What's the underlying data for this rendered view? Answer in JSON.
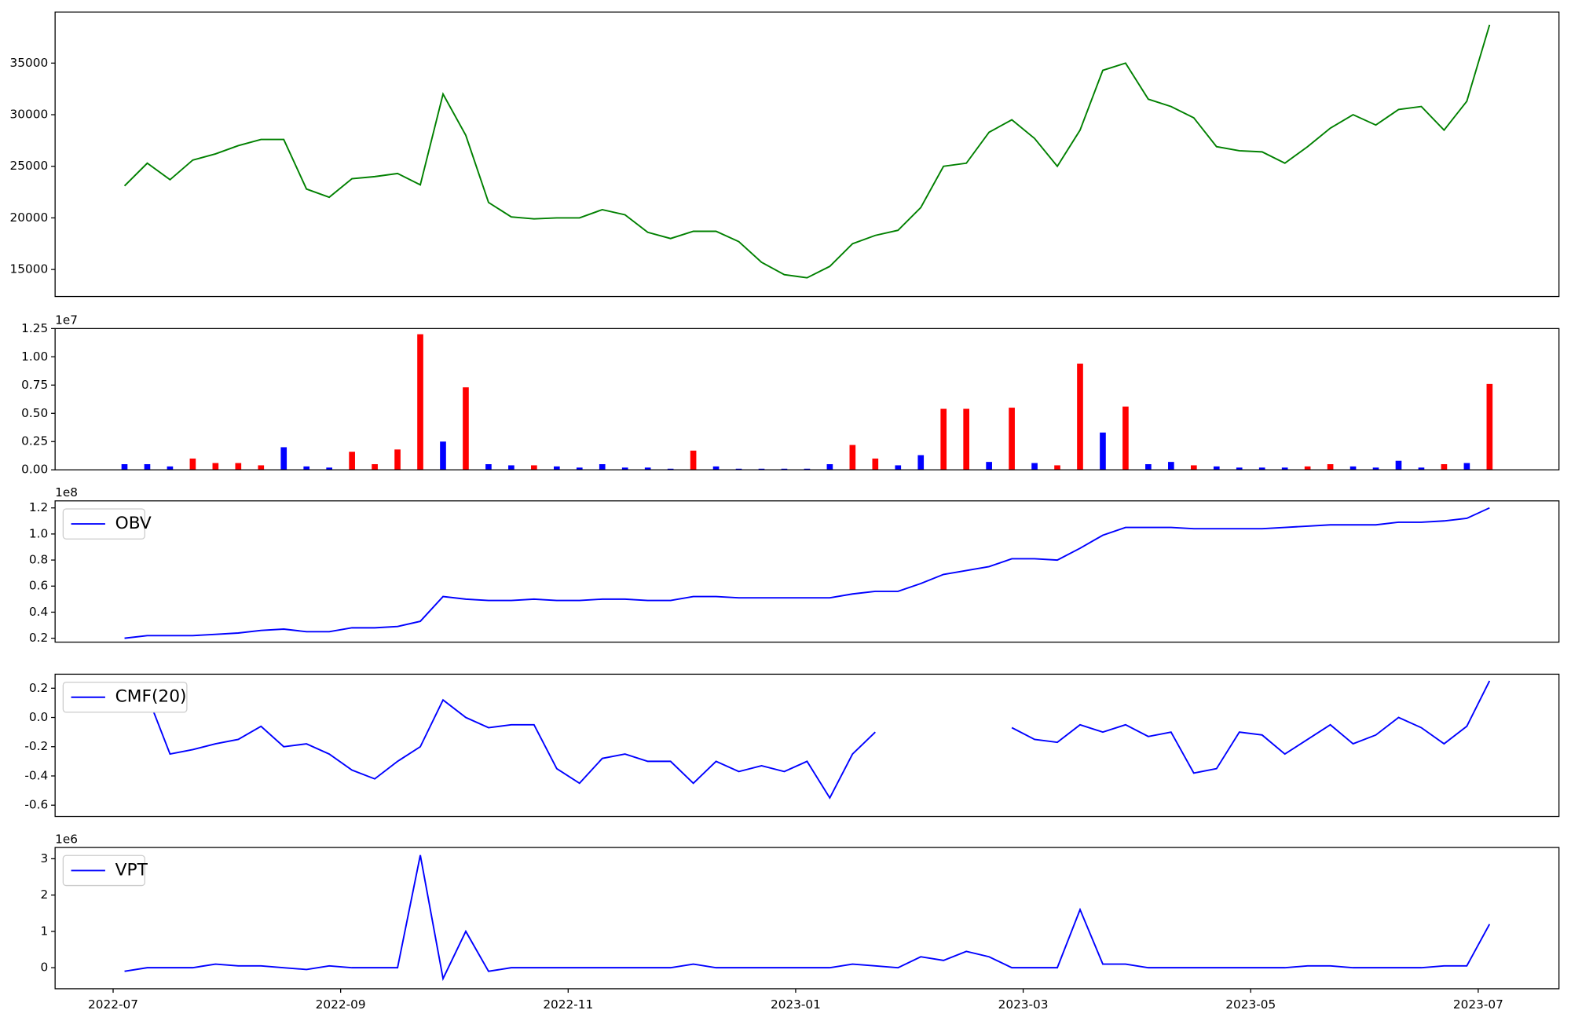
{
  "chart_data": [
    {
      "type": "line",
      "color": "green",
      "xlim": [
        -0.51,
        12.71
      ],
      "ylim": [
        12380,
        39950
      ],
      "yticks": [
        15000,
        20000,
        25000,
        30000,
        35000
      ],
      "x": [
        0.1,
        0.3,
        0.5,
        0.7,
        0.9,
        1.1,
        1.3,
        1.5,
        1.7,
        1.9,
        2.1,
        2.3,
        2.5,
        2.7,
        2.9,
        3.1,
        3.3,
        3.5,
        3.7,
        3.9,
        4.1,
        4.3,
        4.5,
        4.7,
        4.9,
        5.1,
        5.3,
        5.5,
        5.7,
        5.9,
        6.1,
        6.3,
        6.5,
        6.7,
        6.9,
        7.1,
        7.3,
        7.5,
        7.7,
        7.9,
        8.1,
        8.3,
        8.5,
        8.7,
        8.9,
        9.1,
        9.3,
        9.5,
        9.7,
        9.9,
        10.1,
        10.3,
        10.5,
        10.7,
        10.9,
        11.1,
        11.3,
        11.5,
        11.7,
        11.9,
        12.1
      ],
      "values": [
        23100,
        25300,
        23700,
        25600,
        26200,
        27000,
        27600,
        27600,
        22800,
        22000,
        23800,
        24000,
        24300,
        23200,
        32000,
        28000,
        21500,
        20100,
        19900,
        20000,
        20000,
        20800,
        20300,
        18600,
        18000,
        18700,
        18700,
        17700,
        15700,
        14500,
        14200,
        15300,
        17500,
        18300,
        18800,
        21000,
        25000,
        25300,
        28300,
        29500,
        27700,
        25000,
        28500,
        34300,
        35000,
        31500,
        30800,
        29700,
        26900,
        26500,
        26400,
        25300,
        26900,
        28700,
        30000,
        29000,
        30500,
        30800,
        28500,
        31300,
        38700
      ]
    },
    {
      "type": "bar",
      "offset_label": "1e7",
      "xlim": [
        -0.51,
        12.71
      ],
      "ylim": [
        0,
        1.25
      ],
      "yticks": [
        {
          "value": 0,
          "label": "0.00"
        },
        0.25,
        {
          "value": 0.5,
          "label": "0.50"
        },
        0.75,
        {
          "value": 1,
          "label": "1.00"
        },
        1.25
      ],
      "x": [
        0.1,
        0.3,
        0.5,
        0.7,
        0.9,
        1.1,
        1.3,
        1.5,
        1.7,
        1.9,
        2.1,
        2.3,
        2.5,
        2.7,
        2.9,
        3.1,
        3.3,
        3.5,
        3.7,
        3.9,
        4.1,
        4.3,
        4.5,
        4.7,
        4.9,
        5.1,
        5.3,
        5.5,
        5.7,
        5.9,
        6.1,
        6.3,
        6.5,
        6.7,
        6.9,
        7.1,
        7.3,
        7.5,
        7.7,
        7.9,
        8.1,
        8.3,
        8.5,
        8.7,
        8.9,
        9.1,
        9.3,
        9.5,
        9.7,
        9.9,
        10.1,
        10.3,
        10.5,
        10.7,
        10.9,
        11.1,
        11.3,
        11.5,
        11.7,
        11.9,
        12.1
      ],
      "values": [
        0.05,
        0.05,
        0.03,
        0.1,
        0.06,
        0.06,
        0.04,
        0.2,
        0.03,
        0.02,
        0.16,
        0.05,
        0.18,
        1.2,
        0.25,
        0.73,
        0.05,
        0.04,
        0.04,
        0.03,
        0.02,
        0.05,
        0.02,
        0.02,
        0.01,
        0.17,
        0.03,
        0.01,
        0.01,
        0.01,
        0.01,
        0.05,
        0.22,
        0.1,
        0.04,
        0.13,
        0.54,
        0.54,
        0.07,
        0.55,
        0.06,
        0.04,
        0.94,
        0.33,
        0.56,
        0.05,
        0.07,
        0.04,
        0.03,
        0.02,
        0.02,
        0.02,
        0.03,
        0.05,
        0.03,
        0.02,
        0.08,
        0.02,
        0.05,
        0.06,
        0.76
      ],
      "colors": [
        "blue",
        "blue",
        "blue",
        "red",
        "red",
        "red",
        "red",
        "blue",
        "blue",
        "blue",
        "red",
        "red",
        "red",
        "red",
        "blue",
        "red",
        "blue",
        "blue",
        "red",
        "blue",
        "blue",
        "blue",
        "blue",
        "blue",
        "blue",
        "red",
        "blue",
        "blue",
        "blue",
        "blue",
        "blue",
        "blue",
        "red",
        "red",
        "blue",
        "blue",
        "red",
        "red",
        "blue",
        "red",
        "blue",
        "red",
        "red",
        "blue",
        "red",
        "blue",
        "blue",
        "red",
        "blue",
        "blue",
        "blue",
        "blue",
        "red",
        "red",
        "blue",
        "blue",
        "blue",
        "blue",
        "red",
        "blue",
        "red"
      ]
    },
    {
      "type": "line",
      "offset_label": "1e8",
      "legend": "upper left",
      "xlim": [
        -0.51,
        12.71
      ],
      "ylim": [
        0.17,
        1.254
      ],
      "yticks": [
        0.2,
        0.4,
        0.6,
        0.8,
        {
          "value": 1,
          "label": "1.0"
        },
        1.2
      ],
      "x": [
        0.1,
        0.3,
        0.5,
        0.7,
        0.9,
        1.1,
        1.3,
        1.5,
        1.7,
        1.9,
        2.1,
        2.3,
        2.5,
        2.7,
        2.9,
        3.1,
        3.3,
        3.5,
        3.7,
        3.9,
        4.1,
        4.3,
        4.5,
        4.7,
        4.9,
        5.1,
        5.3,
        5.5,
        5.7,
        5.9,
        6.1,
        6.3,
        6.5,
        6.7,
        6.9,
        7.1,
        7.3,
        7.5,
        7.7,
        7.9,
        8.1,
        8.3,
        8.5,
        8.7,
        8.9,
        9.1,
        9.3,
        9.5,
        9.7,
        9.9,
        10.1,
        10.3,
        10.5,
        10.7,
        10.9,
        11.1,
        11.3,
        11.5,
        11.7,
        11.9,
        12.1
      ],
      "series": [
        {
          "name": "OBV",
          "color": "blue",
          "values": [
            0.2,
            0.22,
            0.22,
            0.22,
            0.23,
            0.24,
            0.26,
            0.27,
            0.25,
            0.25,
            0.28,
            0.28,
            0.29,
            0.33,
            0.52,
            0.5,
            0.49,
            0.49,
            0.5,
            0.49,
            0.49,
            0.5,
            0.5,
            0.49,
            0.49,
            0.52,
            0.52,
            0.51,
            0.51,
            0.51,
            0.51,
            0.51,
            0.54,
            0.56,
            0.56,
            0.62,
            0.69,
            0.72,
            0.75,
            0.81,
            0.81,
            0.8,
            0.89,
            0.99,
            1.05,
            1.05,
            1.05,
            1.04,
            1.04,
            1.04,
            1.04,
            1.05,
            1.06,
            1.07,
            1.07,
            1.07,
            1.09,
            1.09,
            1.1,
            1.12,
            1.2
          ]
        }
      ]
    },
    {
      "type": "line",
      "legend": "upper left",
      "xlim": [
        -0.51,
        12.71
      ],
      "ylim": [
        -0.677,
        0.296
      ],
      "yticks": [
        -0.6,
        -0.4,
        -0.2,
        {
          "value": 0,
          "label": "0.0"
        },
        0.2
      ],
      "x": [
        0.1,
        0.3,
        0.5,
        0.7,
        0.9,
        1.1,
        1.3,
        1.5,
        1.7,
        1.9,
        2.1,
        2.3,
        2.5,
        2.7,
        2.9,
        3.1,
        3.3,
        3.5,
        3.7,
        3.9,
        4.1,
        4.3,
        4.5,
        4.7,
        4.9,
        5.1,
        5.3,
        5.5,
        5.7,
        5.9,
        6.1,
        6.3,
        6.5,
        6.7,
        6.9,
        7.1,
        7.3,
        7.5,
        7.7,
        7.9,
        8.1,
        8.3,
        8.5,
        8.7,
        8.9,
        9.1,
        9.3,
        9.5,
        9.7,
        9.9,
        10.1,
        10.3,
        10.5,
        10.7,
        10.9,
        11.1,
        11.3,
        11.5,
        11.7,
        11.9,
        12.1
      ],
      "series": [
        {
          "name": "CMF(20)",
          "color": "blue",
          "values": [
            null,
            0.15,
            -0.25,
            -0.22,
            -0.18,
            -0.15,
            -0.06,
            -0.2,
            -0.18,
            -0.25,
            -0.36,
            -0.42,
            -0.3,
            -0.2,
            0.12,
            0.0,
            -0.07,
            -0.05,
            -0.05,
            -0.35,
            -0.45,
            -0.28,
            -0.25,
            -0.3,
            -0.3,
            -0.45,
            -0.3,
            -0.37,
            -0.33,
            -0.37,
            -0.3,
            -0.55,
            -0.25,
            -0.1,
            null,
            null,
            null,
            null,
            null,
            -0.07,
            -0.15,
            -0.17,
            -0.05,
            -0.1,
            -0.05,
            -0.13,
            -0.1,
            -0.38,
            -0.35,
            -0.1,
            -0.12,
            -0.25,
            -0.15,
            -0.05,
            -0.18,
            -0.12,
            0.0,
            -0.07,
            -0.18,
            -0.06,
            0.25
          ]
        }
      ]
    },
    {
      "type": "line",
      "offset_label": "1e6",
      "legend": "upper left",
      "xlim": [
        -0.51,
        12.71
      ],
      "ylim": [
        -0.58,
        3.31
      ],
      "yticks": [
        0,
        1,
        2,
        3
      ],
      "xticks": [
        {
          "value": 0,
          "label": "2022-07"
        },
        {
          "value": 2,
          "label": "2022-09"
        },
        {
          "value": 4,
          "label": "2022-11"
        },
        {
          "value": 6,
          "label": "2023-01"
        },
        {
          "value": 8,
          "label": "2023-03"
        },
        {
          "value": 10,
          "label": "2023-05"
        },
        {
          "value": 12,
          "label": "2023-07"
        }
      ],
      "x": [
        0.1,
        0.3,
        0.5,
        0.7,
        0.9,
        1.1,
        1.3,
        1.5,
        1.7,
        1.9,
        2.1,
        2.3,
        2.5,
        2.7,
        2.9,
        3.1,
        3.3,
        3.5,
        3.7,
        3.9,
        4.1,
        4.3,
        4.5,
        4.7,
        4.9,
        5.1,
        5.3,
        5.5,
        5.7,
        5.9,
        6.1,
        6.3,
        6.5,
        6.7,
        6.9,
        7.1,
        7.3,
        7.5,
        7.7,
        7.9,
        8.1,
        8.3,
        8.5,
        8.7,
        8.9,
        9.1,
        9.3,
        9.5,
        9.7,
        9.9,
        10.1,
        10.3,
        10.5,
        10.7,
        10.9,
        11.1,
        11.3,
        11.5,
        11.7,
        11.9,
        12.1
      ],
      "series": [
        {
          "name": "VPT",
          "color": "blue",
          "values": [
            -0.1,
            0,
            0,
            0,
            0.1,
            0.05,
            0.05,
            0,
            -0.05,
            0.05,
            0,
            0,
            0,
            3.1,
            -0.3,
            1.0,
            -0.1,
            0,
            0,
            0,
            0,
            0,
            0,
            0,
            0,
            0.1,
            0,
            0,
            0,
            0,
            0,
            0,
            0.1,
            0.05,
            0,
            0.3,
            0.2,
            0.45,
            0.3,
            0,
            0,
            0,
            1.6,
            0.1,
            0.1,
            0,
            0,
            0,
            0,
            0,
            0,
            0,
            0.05,
            0.05,
            0,
            0,
            0,
            0,
            0.05,
            0.05,
            1.2
          ]
        }
      ]
    }
  ]
}
